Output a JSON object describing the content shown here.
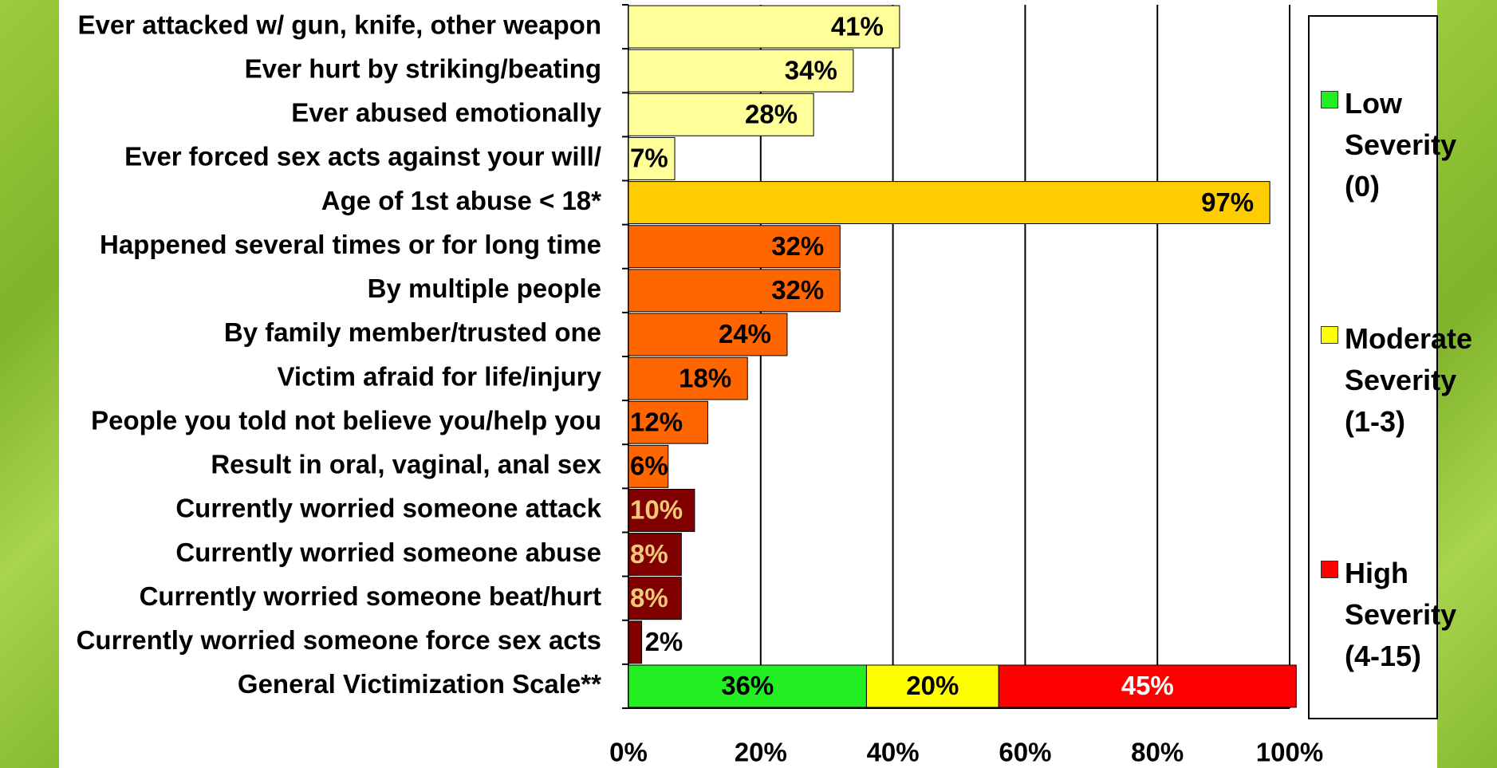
{
  "chart_data": {
    "type": "bar",
    "orientation": "horizontal",
    "categories": [
      "Ever attacked w/ gun, knife, other weapon",
      "Ever hurt by striking/beating",
      "Ever abused emotionally",
      "Ever forced sex acts against your will/",
      "Age of 1st abuse < 18*",
      "Happened several times or for long time",
      "By multiple people",
      "By family member/trusted one",
      "Victim afraid for life/injury",
      "People you told not believe you/help you",
      "Result in oral, vaginal, anal sex",
      "Currently worried someone attack",
      "Currently worried someone abuse",
      "Currently worried someone beat/hurt",
      "Currently worried someone force sex acts",
      "General Victimization Scale**"
    ],
    "values": [
      41,
      34,
      28,
      7,
      97,
      32,
      32,
      24,
      18,
      12,
      6,
      10,
      8,
      8,
      2,
      null
    ],
    "value_labels": [
      "41%",
      "34%",
      "28%",
      "7%",
      "97%",
      "32%",
      "32%",
      "24%",
      "18%",
      "12%",
      "6%",
      "10%",
      "8%",
      "8%",
      "2%",
      null
    ],
    "bar_colors": [
      "#ffff99",
      "#ffff99",
      "#ffff99",
      "#ffff99",
      "#ffcc00",
      "#ff6600",
      "#ff6600",
      "#ff6600",
      "#ff6600",
      "#ff6600",
      "#ff6600",
      "#800000",
      "#800000",
      "#800000",
      "#800000",
      null
    ],
    "label_colors": [
      "#000000",
      "#000000",
      "#000000",
      "#000000",
      "#000000",
      "#000000",
      "#000000",
      "#000000",
      "#000000",
      "#000000",
      "#000000",
      "#f2c879",
      "#f2c879",
      "#f2c879",
      "#000000",
      null
    ],
    "series": [
      {
        "name": "Low Severity (0)",
        "color": "#22ee22",
        "values": [
          null,
          null,
          null,
          null,
          null,
          null,
          null,
          null,
          null,
          null,
          null,
          null,
          null,
          null,
          null,
          36
        ],
        "value_labels": [
          null,
          null,
          null,
          null,
          null,
          null,
          null,
          null,
          null,
          null,
          null,
          null,
          null,
          null,
          null,
          "36%"
        ],
        "label_color": "#000000"
      },
      {
        "name": "Moderate Severity (1-3)",
        "color": "#ffff00",
        "values": [
          null,
          null,
          null,
          null,
          null,
          null,
          null,
          null,
          null,
          null,
          null,
          null,
          null,
          null,
          null,
          20
        ],
        "value_labels": [
          null,
          null,
          null,
          null,
          null,
          null,
          null,
          null,
          null,
          null,
          null,
          null,
          null,
          null,
          null,
          "20%"
        ],
        "label_color": "#000000"
      },
      {
        "name": "High Severity (4-15)",
        "color": "#ff0000",
        "values": [
          null,
          null,
          null,
          null,
          null,
          null,
          null,
          null,
          null,
          null,
          null,
          null,
          null,
          null,
          null,
          45
        ],
        "value_labels": [
          null,
          null,
          null,
          null,
          null,
          null,
          null,
          null,
          null,
          null,
          null,
          null,
          null,
          null,
          null,
          "45%"
        ],
        "label_color": "#ffffff"
      }
    ],
    "xlim": [
      0,
      100
    ],
    "xticks": [
      {
        "value": 0,
        "label": "0%"
      },
      {
        "value": 20,
        "label": "20%"
      },
      {
        "value": 40,
        "label": "40%"
      },
      {
        "value": 60,
        "label": "60%"
      },
      {
        "value": 80,
        "label": "80%"
      },
      {
        "value": 100,
        "label": "100%"
      }
    ],
    "grid": true,
    "legend": "right"
  }
}
